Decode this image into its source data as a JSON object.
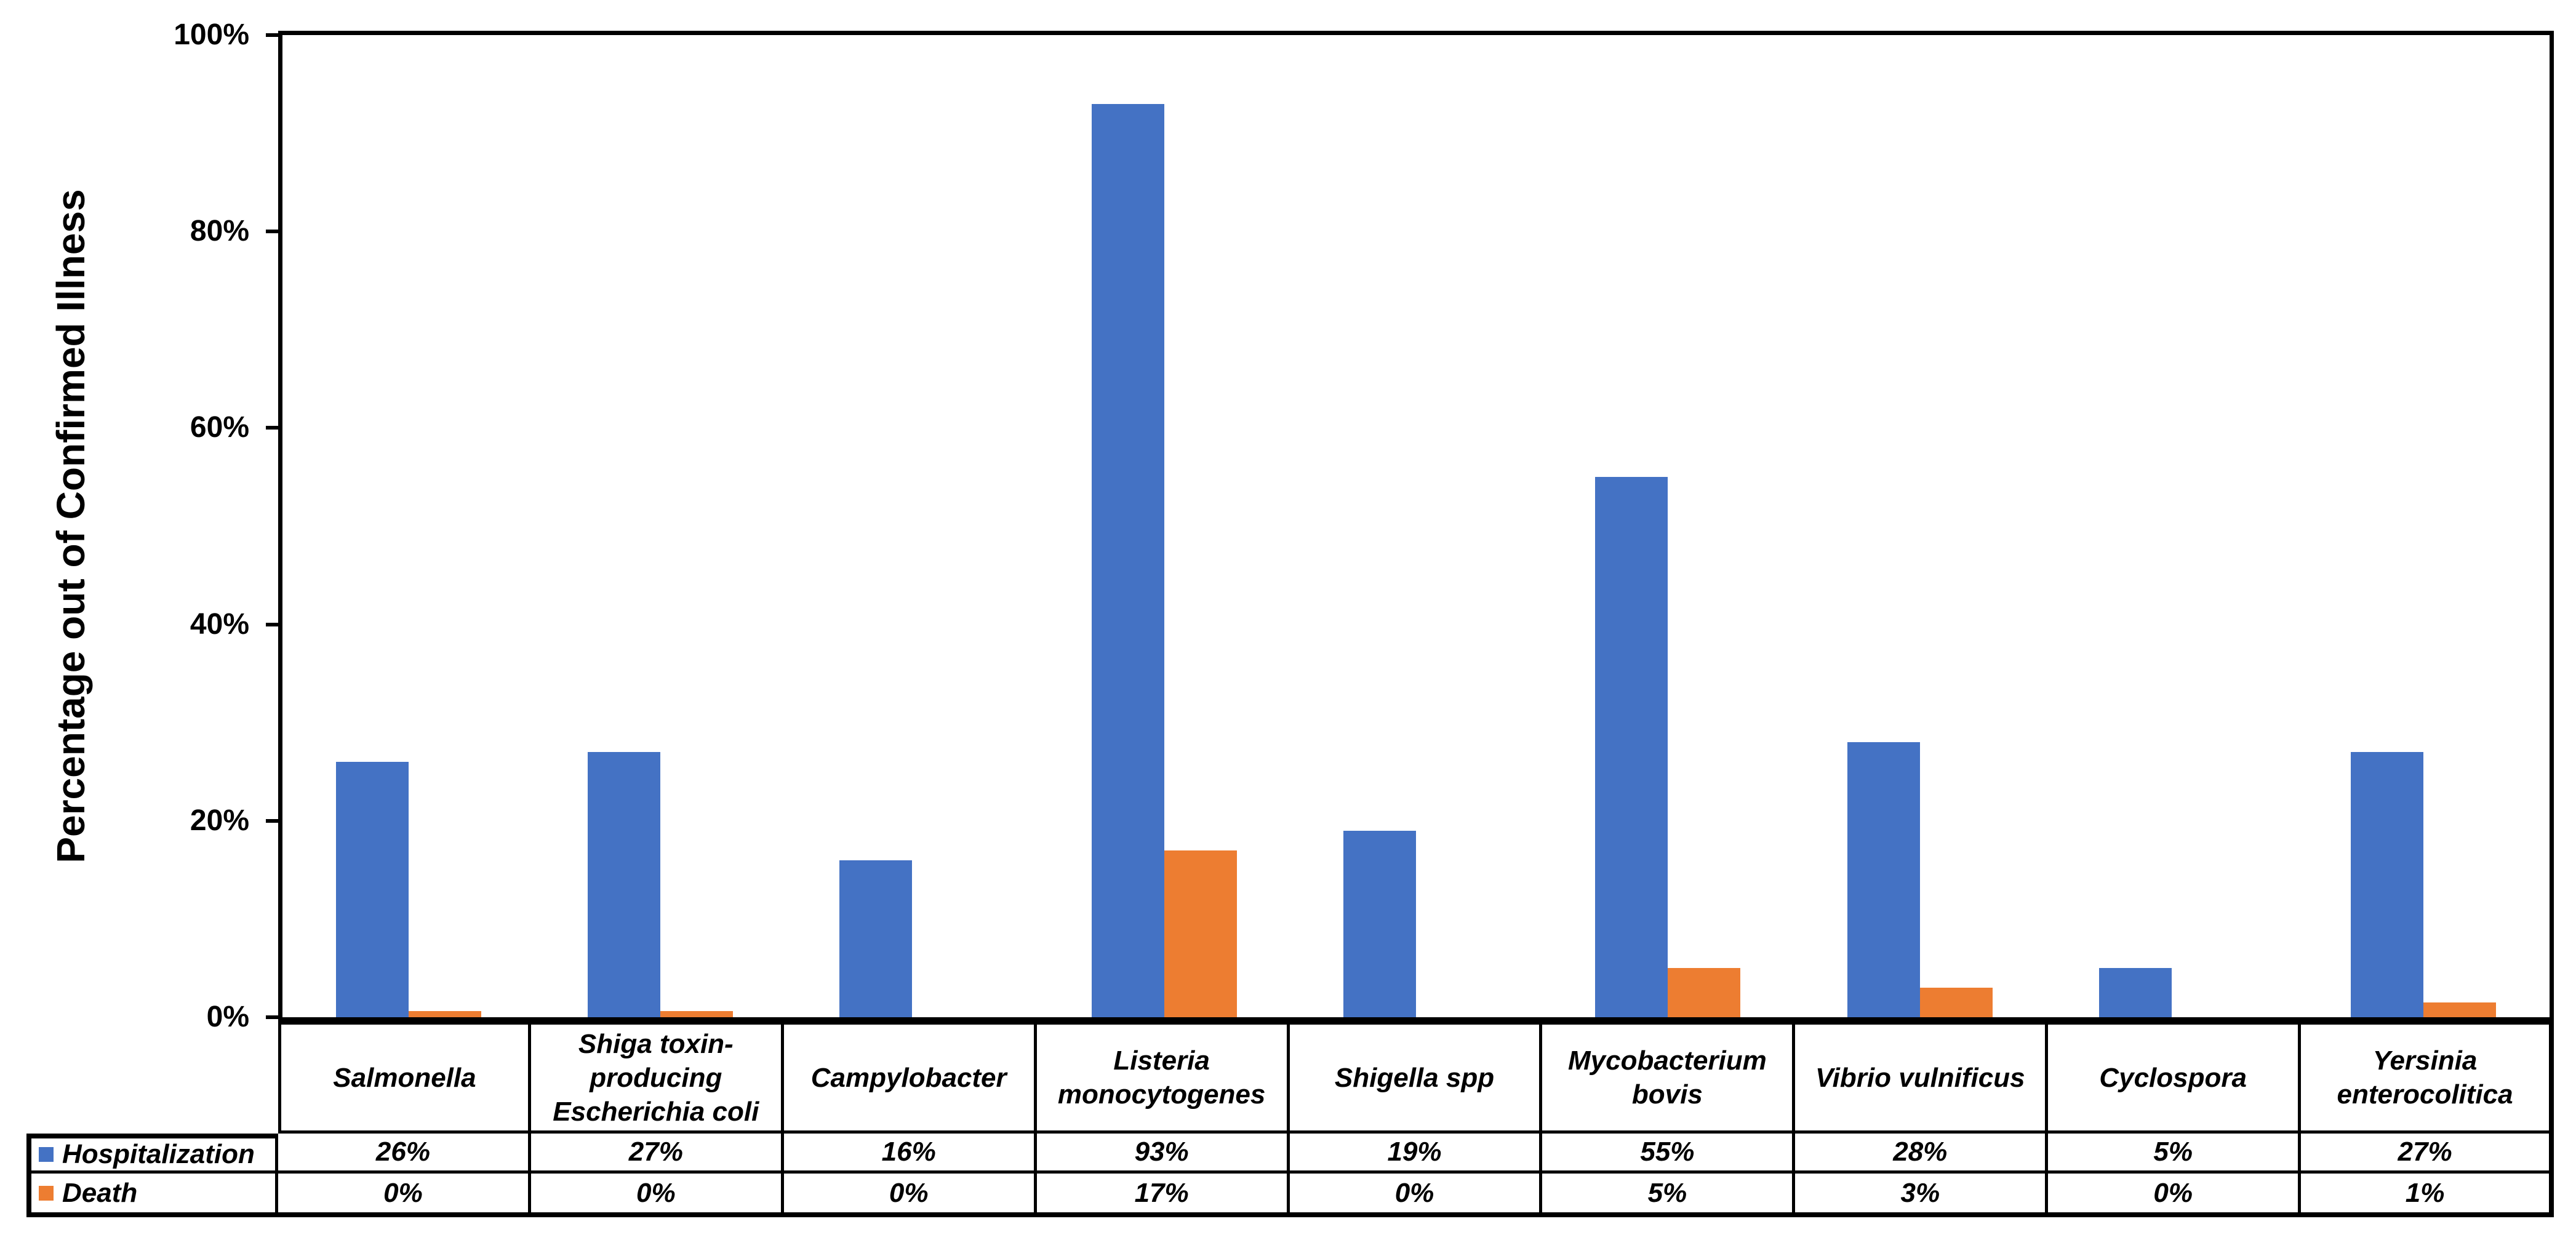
{
  "chart_data": {
    "type": "bar",
    "ylabel": "Percentage out of Confirmed Illness",
    "xlabel": "",
    "ylim": [
      0,
      100
    ],
    "grid": false,
    "legend_position": "table-left",
    "yticks": [
      {
        "value": 0,
        "label": "0%"
      },
      {
        "value": 20,
        "label": "20%"
      },
      {
        "value": 40,
        "label": "40%"
      },
      {
        "value": 60,
        "label": "60%"
      },
      {
        "value": 80,
        "label": "80%"
      },
      {
        "value": 100,
        "label": "100%"
      }
    ],
    "categories": [
      "Salmonella",
      "Shiga toxin-producing Escherichia coli",
      "Campylobacter",
      "Listeria monocytogenes",
      "Shigella spp",
      "Mycobacterium bovis",
      "Vibrio vulnificus",
      "Cyclospora",
      "Yersinia enterocolitica"
    ],
    "series": [
      {
        "name": "Hospitalization",
        "color": "#4472C4",
        "values": [
          26,
          27,
          16,
          93,
          19,
          55,
          28,
          5,
          27
        ],
        "labels": [
          "26%",
          "27%",
          "16%",
          "93%",
          "19%",
          "55%",
          "28%",
          "5%",
          "27%"
        ]
      },
      {
        "name": "Death",
        "color": "#ED7D31",
        "values": [
          0,
          0,
          0,
          17,
          0,
          5,
          3,
          0,
          1
        ],
        "labels": [
          "0%",
          "0%",
          "0%",
          "17%",
          "0%",
          "5%",
          "3%",
          "0%",
          "1%"
        ],
        "render_heights": [
          0.6,
          0.6,
          0,
          17,
          0,
          5,
          3,
          0,
          1.5
        ]
      }
    ]
  },
  "colors": {
    "bar_blue": "#4472C4",
    "bar_orange": "#ED7D31",
    "axis": "#000000",
    "background": "#FFFFFF"
  }
}
